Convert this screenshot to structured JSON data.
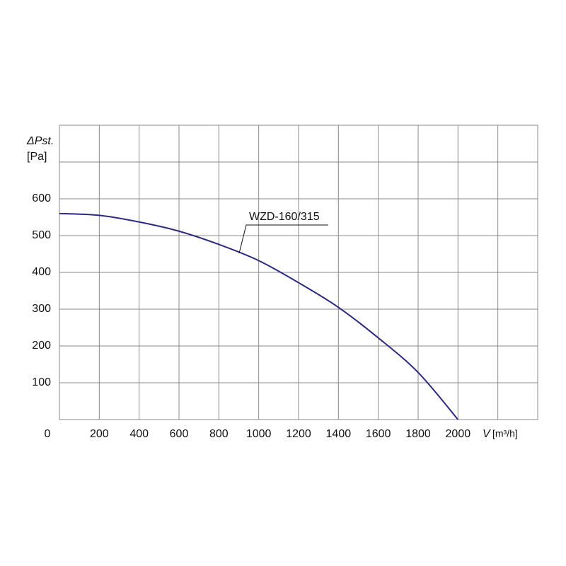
{
  "chart_data": {
    "type": "line",
    "y_label": "ΔPst.",
    "y_unit": "[Pa]",
    "x_label": "V",
    "x_unit": "[m³/h]",
    "x": [
      0,
      200,
      400,
      600,
      800,
      1000,
      1200,
      1400,
      1600,
      1800,
      2000
    ],
    "series": [
      {
        "name": "WZD-160/315",
        "color": "#2b2a80",
        "values": [
          560,
          555,
          537,
          512,
          476,
          432,
          372,
          305,
          222,
          128,
          0
        ]
      }
    ],
    "xlim": [
      0,
      2400
    ],
    "xticks": [
      0,
      200,
      400,
      600,
      800,
      1000,
      1200,
      1400,
      1600,
      1800,
      2000
    ],
    "ylim": [
      0,
      800
    ],
    "yticks": [
      100,
      200,
      300,
      400,
      500,
      600
    ],
    "grid": true
  }
}
